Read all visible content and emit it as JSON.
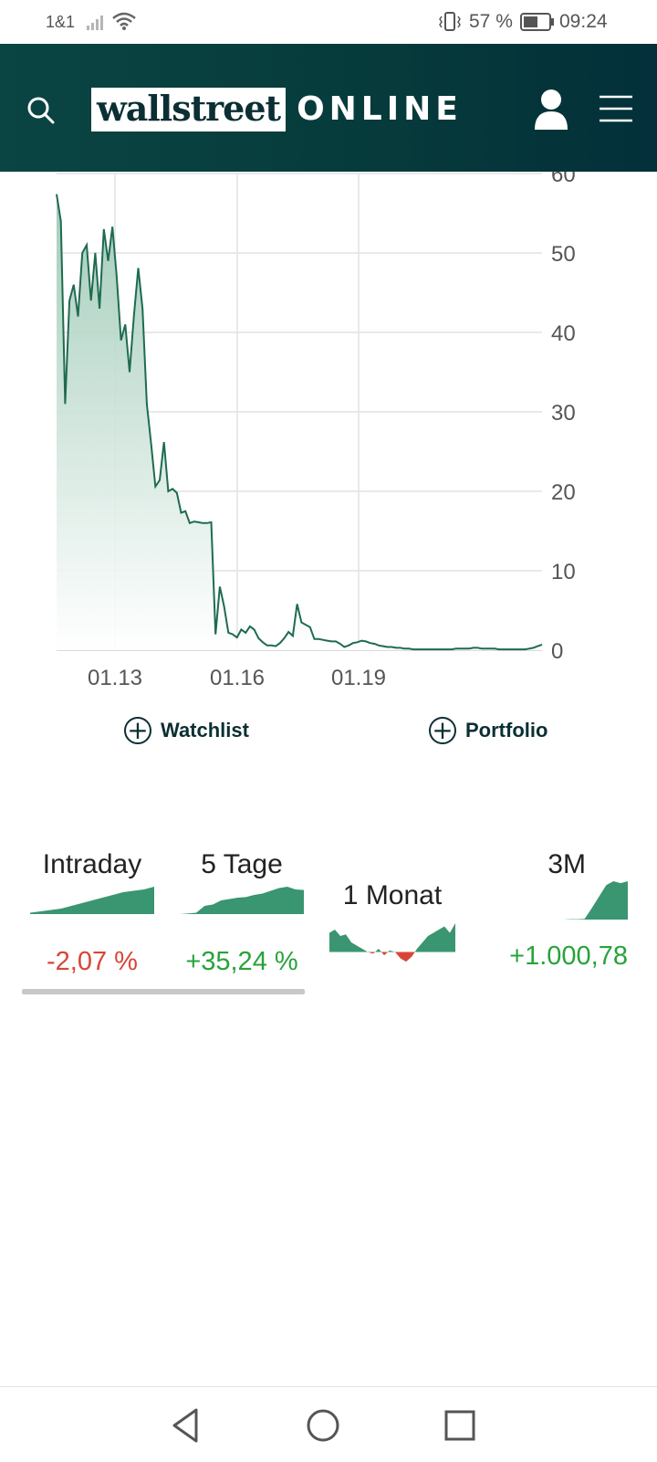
{
  "status_bar": {
    "carrier": "1&1",
    "battery": "57 %",
    "time": "09:24"
  },
  "header": {
    "logo_box_text": "wallstreet",
    "logo_online_text": "ONLINE",
    "colors": {
      "background": "#063a3b",
      "logo_text": "#0b2f33"
    }
  },
  "chart_data": {
    "type": "area",
    "x_ticks": [
      "01.13",
      "01.16",
      "01.19"
    ],
    "y_ticks": [
      0,
      10,
      20,
      30,
      40,
      50,
      60
    ],
    "ylim": [
      0,
      60
    ],
    "line_color": "#1e6b50",
    "fill_color": "#9ec9b6",
    "values": [
      57.4,
      54,
      31,
      44,
      46,
      42,
      50,
      51,
      44,
      50,
      43,
      53,
      49,
      53.3,
      47,
      39,
      41,
      35,
      42,
      48.1,
      43,
      31,
      26,
      20.6,
      21.4,
      26.2,
      20,
      20.3,
      19.8,
      17.3,
      17.5,
      16,
      16.2,
      16.1,
      16,
      16,
      16.1,
      2,
      8,
      5.5,
      2.2,
      2.0,
      1.6,
      2.6,
      2.2,
      3.0,
      2.6,
      1.5,
      1.0,
      0.6,
      0.6,
      0.5,
      0.9,
      1.5,
      2.3,
      1.8,
      5.8,
      3.5,
      3.2,
      2.9,
      1.4,
      1.4,
      1.3,
      1.2,
      1.1,
      1.1,
      0.8,
      0.4,
      0.6,
      0.9,
      1.0,
      1.2,
      1.1,
      0.9,
      0.8,
      0.6,
      0.5,
      0.4,
      0.4,
      0.3,
      0.3,
      0.2,
      0.2,
      0.1,
      0.1,
      0.1,
      0.1,
      0.1,
      0.1,
      0.1,
      0.1,
      0.1,
      0.1,
      0.2,
      0.2,
      0.2,
      0.2,
      0.3,
      0.3,
      0.2,
      0.2,
      0.2,
      0.2,
      0.1,
      0.1,
      0.1,
      0.1,
      0.1,
      0.1,
      0.1,
      0.2,
      0.3,
      0.5,
      0.7
    ]
  },
  "actions": {
    "watchlist": "Watchlist",
    "portfolio": "Portfolio"
  },
  "performance": {
    "tabs": [
      {
        "label": "Intraday",
        "value": "-2,07 %",
        "sparkline": [
          0.05,
          0.1,
          0.15,
          0.2,
          0.3,
          0.4,
          0.5,
          0.6,
          0.7,
          0.8,
          0.85,
          0.9,
          1.0
        ]
      },
      {
        "label": "5 Tage",
        "value": "+35,24 %",
        "sparkline": [
          0,
          0.02,
          0.05,
          0.3,
          0.35,
          0.5,
          0.55,
          0.6,
          0.62,
          0.7,
          0.75,
          0.85,
          0.95,
          1.0,
          0.9,
          0.88
        ]
      },
      {
        "label": "1 Monat",
        "value": "",
        "sparkline": [
          0.6,
          0.7,
          0.5,
          0.55,
          0.3,
          0.2,
          0.1,
          0.0,
          -0.05,
          0.1,
          -0.1,
          0.05,
          0.0,
          -0.2,
          -0.3,
          -0.15,
          0.1,
          0.3,
          0.5,
          0.6,
          0.7,
          0.8,
          0.6,
          0.9
        ]
      },
      {
        "label": "3M",
        "value": "+1.000,78",
        "sparkline": [
          0,
          0,
          0,
          0,
          0,
          0,
          0,
          0,
          0,
          0.01,
          0.01,
          0.02,
          0.3,
          0.6,
          0.9,
          1.0,
          0.95,
          1.0
        ]
      }
    ],
    "selected_index": 0,
    "colors": {
      "positive": "#27a33a",
      "negative": "#d94535",
      "spark_fill": "#3a9571"
    }
  }
}
